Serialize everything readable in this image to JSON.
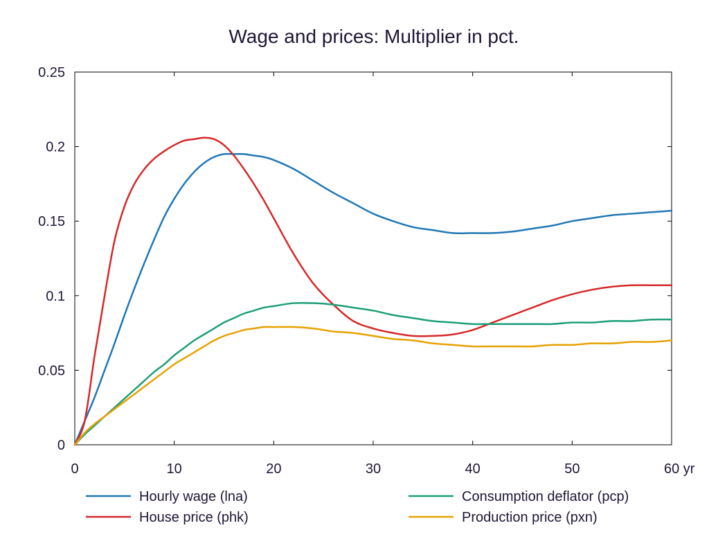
{
  "chart_data": {
    "type": "line",
    "title": "Wage and prices: Multiplier in pct.",
    "xlabel": "",
    "ylabel": "",
    "xlim": [
      0,
      60
    ],
    "ylim": [
      0,
      0.25
    ],
    "x_ticks": [
      0,
      10,
      20,
      30,
      40,
      50,
      60
    ],
    "x_tick_labels": [
      "0",
      "10",
      "20",
      "30",
      "40",
      "50",
      "60 yr"
    ],
    "y_ticks": [
      0,
      0.05,
      0.1,
      0.15,
      0.2,
      0.25
    ],
    "y_tick_labels": [
      "0",
      "0.05",
      "0.1",
      "0.15",
      "0.2",
      "0.25"
    ],
    "grid": false,
    "legend_position": "bottom",
    "x": [
      0,
      1,
      2,
      3,
      4,
      5,
      6,
      7,
      8,
      9,
      10,
      11,
      12,
      13,
      14,
      15,
      16,
      17,
      18,
      19,
      20,
      22,
      24,
      26,
      28,
      30,
      32,
      34,
      36,
      38,
      40,
      42,
      44,
      46,
      48,
      50,
      52,
      54,
      56,
      58,
      60
    ],
    "series": [
      {
        "name": "Hourly wage (lna)",
        "color": "#1f77b4",
        "values": [
          0,
          0.016,
          0.032,
          0.05,
          0.068,
          0.087,
          0.105,
          0.122,
          0.138,
          0.153,
          0.165,
          0.175,
          0.183,
          0.189,
          0.193,
          0.195,
          0.195,
          0.195,
          0.194,
          0.193,
          0.191,
          0.185,
          0.177,
          0.169,
          0.162,
          0.155,
          0.15,
          0.146,
          0.144,
          0.142,
          0.142,
          0.142,
          0.143,
          0.145,
          0.147,
          0.15,
          0.152,
          0.154,
          0.155,
          0.156,
          0.157
        ]
      },
      {
        "name": "House price (phk)",
        "color": "#d62728",
        "values": [
          0,
          0.016,
          0.06,
          0.1,
          0.137,
          0.16,
          0.175,
          0.185,
          0.192,
          0.197,
          0.201,
          0.204,
          0.205,
          0.206,
          0.205,
          0.201,
          0.194,
          0.185,
          0.175,
          0.164,
          0.152,
          0.128,
          0.108,
          0.094,
          0.083,
          0.078,
          0.075,
          0.073,
          0.073,
          0.074,
          0.077,
          0.082,
          0.087,
          0.092,
          0.097,
          0.101,
          0.104,
          0.106,
          0.107,
          0.107,
          0.107
        ]
      },
      {
        "name": "Consumption deflator (pcp)",
        "color": "#1b9e77",
        "values": [
          0,
          0.007,
          0.013,
          0.019,
          0.025,
          0.031,
          0.037,
          0.043,
          0.049,
          0.054,
          0.06,
          0.065,
          0.07,
          0.074,
          0.078,
          0.082,
          0.085,
          0.088,
          0.09,
          0.092,
          0.093,
          0.095,
          0.095,
          0.094,
          0.092,
          0.09,
          0.087,
          0.085,
          0.083,
          0.082,
          0.081,
          0.081,
          0.081,
          0.081,
          0.081,
          0.082,
          0.082,
          0.083,
          0.083,
          0.084,
          0.084
        ]
      },
      {
        "name": "Production price (pxn)",
        "color": "#e6a100",
        "values": [
          0,
          0.008,
          0.014,
          0.019,
          0.024,
          0.029,
          0.034,
          0.039,
          0.044,
          0.049,
          0.054,
          0.058,
          0.062,
          0.066,
          0.07,
          0.073,
          0.075,
          0.077,
          0.078,
          0.079,
          0.079,
          0.079,
          0.078,
          0.076,
          0.075,
          0.073,
          0.071,
          0.07,
          0.068,
          0.067,
          0.066,
          0.066,
          0.066,
          0.066,
          0.067,
          0.067,
          0.068,
          0.068,
          0.069,
          0.069,
          0.07
        ]
      }
    ]
  }
}
